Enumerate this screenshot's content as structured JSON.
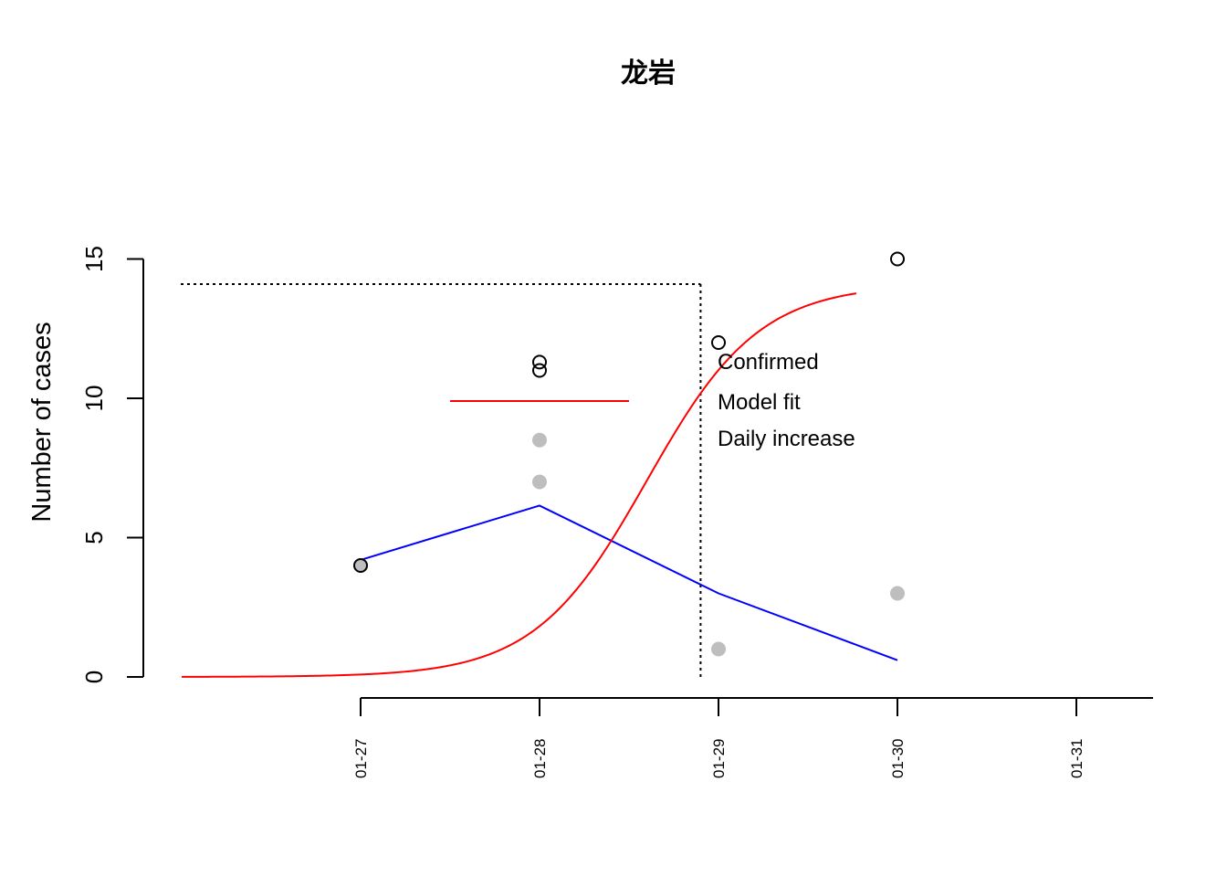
{
  "chart_data": {
    "type": "line",
    "title": "龙岩",
    "xlabel": "",
    "ylabel": "Number of cases",
    "x_ticks": [
      "01-27",
      "01-28",
      "01-29",
      "01-30",
      "01-31"
    ],
    "y_ticks": [
      "0",
      "5",
      "10",
      "15"
    ],
    "ylim": [
      0,
      15
    ],
    "grid": false,
    "legend_position": "right",
    "legend": [
      "Confirmed",
      "Model fit",
      "Daily increase"
    ],
    "series": [
      {
        "role": "confirmed",
        "marker": "open-circle",
        "color": "#000000",
        "points": [
          {
            "x": "01-27",
            "y": 4
          },
          {
            "x": "01-28",
            "y": 11
          },
          {
            "x": "01-28",
            "y": 11.3
          },
          {
            "x": "01-29",
            "y": 12
          },
          {
            "x": "01-30",
            "y": 15
          }
        ]
      },
      {
        "role": "daily-increase",
        "marker": "filled-circle",
        "color": "#bebebe",
        "points": [
          {
            "x": "01-27",
            "y": 4
          },
          {
            "x": "01-28",
            "y": 7
          },
          {
            "x": "01-28",
            "y": 8.5
          },
          {
            "x": "01-29",
            "y": 1
          },
          {
            "x": "01-30",
            "y": 3
          }
        ]
      },
      {
        "role": "daily-increase-fit",
        "line": "solid",
        "color": "#0000ff",
        "points": [
          {
            "x": "01-27",
            "y": 4.2
          },
          {
            "x": "01-28",
            "y": 6.15
          },
          {
            "x": "01-29",
            "y": 3.0
          },
          {
            "x": "01-30",
            "y": 0.6
          }
        ]
      },
      {
        "role": "model-fit",
        "line": "solid",
        "color": "#ff0000",
        "logistic": {
          "K": 14.1,
          "r": 3.18,
          "t0": 1.6
        },
        "x_range_days_from_0127": [
          -1.0,
          2.77
        ]
      }
    ],
    "reference_lines": {
      "color": "#000000",
      "style": "dotted",
      "horizontal_y": 14.1,
      "vertical_x_days_from_0127": 1.9
    },
    "red_segment": {
      "color": "#ff0000",
      "y": 9.9,
      "x_range_days_from_0127": [
        0.5,
        1.5
      ]
    }
  }
}
